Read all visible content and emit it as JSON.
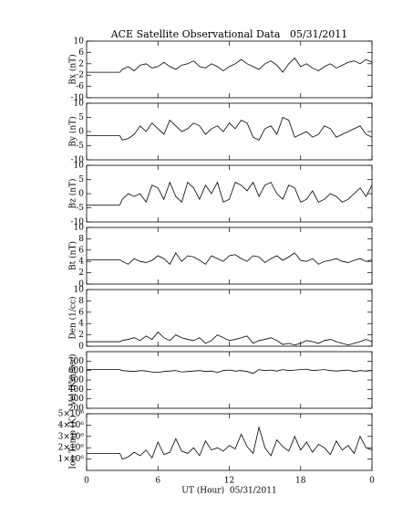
{
  "chart_data": [
    {
      "type": "line",
      "title": "ACE Satellite Observational Data   05/31/2011",
      "ylabel": "Bx (nT)",
      "xlim": [
        0,
        24
      ],
      "ylim": [
        -10,
        10
      ],
      "yticks": [
        -10,
        -6,
        -2,
        2,
        6,
        10
      ],
      "color": "#000000",
      "x": [
        0,
        2.8,
        3,
        3.5,
        4,
        4.5,
        5,
        5.5,
        6,
        6.5,
        7,
        7.5,
        8,
        8.5,
        9,
        9.5,
        10,
        10.5,
        11,
        11.5,
        12,
        12.5,
        13,
        13.5,
        14,
        14.5,
        15,
        15.5,
        16,
        16.5,
        17,
        17.5,
        18,
        18.5,
        19,
        19.5,
        20,
        20.5,
        21,
        21.5,
        22,
        22.5,
        23,
        23.5,
        24
      ],
      "values": [
        -1,
        -1,
        0,
        1,
        -0.5,
        1.5,
        2,
        0.5,
        1,
        2.5,
        1,
        0,
        1.5,
        2,
        3,
        1,
        0.5,
        2,
        1,
        -0.5,
        1,
        2,
        3.5,
        2,
        1,
        0,
        2,
        3,
        1.5,
        -1,
        2,
        4,
        1,
        2,
        0.5,
        -0.5,
        1,
        2,
        0.5,
        1.5,
        2.5,
        3,
        2,
        3.5,
        2.5
      ]
    },
    {
      "type": "line",
      "ylabel": "By (nT)",
      "xlim": [
        0,
        24
      ],
      "ylim": [
        -10,
        10
      ],
      "yticks": [
        -10,
        -5,
        0,
        5,
        10
      ],
      "color": "#000000",
      "x": [
        0,
        2.8,
        3,
        3.5,
        4,
        4.5,
        5,
        5.5,
        6,
        6.5,
        7,
        7.5,
        8,
        8.5,
        9,
        9.5,
        10,
        10.5,
        11,
        11.5,
        12,
        12.5,
        13,
        13.5,
        14,
        14.5,
        15,
        15.5,
        16,
        16.5,
        17,
        17.5,
        18,
        18.5,
        19,
        19.5,
        20,
        20.5,
        21,
        21.5,
        22,
        22.5,
        23,
        23.5,
        24
      ],
      "values": [
        -1.5,
        -1.5,
        -3,
        -2.5,
        -1,
        2,
        0,
        3,
        1,
        -1,
        4,
        2,
        0,
        1,
        3,
        2,
        -1,
        1,
        2,
        0,
        3,
        1,
        4,
        3,
        -2,
        -3,
        1,
        2,
        -1,
        5,
        4,
        -2,
        -1,
        0,
        -2,
        -1,
        2,
        1,
        -2,
        -1,
        0,
        1,
        2,
        -1,
        -2
      ]
    },
    {
      "type": "line",
      "ylabel": "Bz (nT)",
      "xlim": [
        0,
        24
      ],
      "ylim": [
        -10,
        10
      ],
      "yticks": [
        -10,
        -5,
        0,
        5,
        10
      ],
      "color": "#000000",
      "x": [
        0,
        2.8,
        3,
        3.5,
        4,
        4.5,
        5,
        5.5,
        6,
        6.5,
        7,
        7.5,
        8,
        8.5,
        9,
        9.5,
        10,
        10.5,
        11,
        11.5,
        12,
        12.5,
        13,
        13.5,
        14,
        14.5,
        15,
        15.5,
        16,
        16.5,
        17,
        17.5,
        18,
        18.5,
        19,
        19.5,
        20,
        20.5,
        21,
        21.5,
        22,
        22.5,
        23,
        23.5,
        24
      ],
      "values": [
        -4,
        -4,
        -2,
        0,
        -1,
        0,
        -3,
        3,
        2,
        -2,
        4,
        -1,
        -3,
        4,
        2,
        -2,
        3,
        0,
        4,
        -3,
        -2,
        4,
        3,
        1,
        4,
        -1,
        3,
        4,
        0,
        -2,
        3,
        2,
        -3,
        -2,
        1,
        -3,
        -2,
        0,
        -1,
        -3,
        -2,
        0,
        2,
        -1,
        3
      ]
    },
    {
      "type": "line",
      "ylabel": "Bt (nT)",
      "xlim": [
        0,
        24
      ],
      "ylim": [
        0,
        10
      ],
      "yticks": [
        0,
        2,
        4,
        6,
        8,
        10
      ],
      "color": "#000000",
      "x": [
        0,
        2.8,
        3,
        3.5,
        4,
        4.5,
        5,
        5.5,
        6,
        6.5,
        7,
        7.5,
        8,
        8.5,
        9,
        9.5,
        10,
        10.5,
        11,
        11.5,
        12,
        12.5,
        13,
        13.5,
        14,
        14.5,
        15,
        15.5,
        16,
        16.5,
        17,
        17.5,
        18,
        18.5,
        19,
        19.5,
        20,
        20.5,
        21,
        21.5,
        22,
        22.5,
        23,
        23.5,
        24
      ],
      "values": [
        4.3,
        4.3,
        4,
        3.5,
        4.5,
        4,
        3.8,
        4.2,
        5,
        4.5,
        3.5,
        5.5,
        4,
        5,
        4.8,
        4.2,
        3.5,
        5,
        4.5,
        4,
        5,
        5.2,
        4.5,
        4,
        5,
        4.8,
        3.8,
        4.5,
        5,
        4.2,
        4.8,
        5.5,
        4.2,
        4,
        4.5,
        3.5,
        4,
        4.2,
        4.5,
        4,
        3.8,
        4.2,
        4.5,
        4,
        4.3
      ]
    },
    {
      "type": "line",
      "ylabel": "Den (1/cc)",
      "xlim": [
        0,
        24
      ],
      "ylim": [
        0,
        10
      ],
      "yticks": [
        0,
        2,
        4,
        6,
        8,
        10
      ],
      "color": "#000000",
      "x": [
        0,
        2.8,
        3,
        3.5,
        4,
        4.5,
        5,
        5.5,
        6,
        6.5,
        7,
        7.5,
        8,
        8.5,
        9,
        9.5,
        10,
        10.5,
        11,
        11.5,
        12,
        12.5,
        13,
        13.5,
        14,
        14.5,
        15,
        15.5,
        16,
        16.5,
        17,
        17.5,
        18,
        18.5,
        19,
        19.5,
        20,
        20.5,
        21,
        21.5,
        22,
        22.5,
        23,
        23.5,
        24
      ],
      "values": [
        0.8,
        0.8,
        1,
        1.2,
        1.5,
        1,
        1.8,
        1.2,
        2.5,
        1.5,
        1,
        2,
        1.5,
        1.2,
        1,
        1.5,
        0.5,
        1,
        2,
        1.5,
        1,
        1.2,
        1.5,
        1.8,
        0.5,
        1,
        1.2,
        1.5,
        1,
        0.3,
        0.5,
        0.2,
        0.5,
        1,
        0.8,
        0.5,
        1,
        1.2,
        0.8,
        0.5,
        0.2,
        0.5,
        0.8,
        1.2,
        0.8
      ]
    },
    {
      "type": "line",
      "ylabel": "Vel (Km/sec)",
      "xlim": [
        0,
        24
      ],
      "ylim": [
        200,
        800
      ],
      "yticks": [
        200,
        300,
        400,
        500,
        600,
        700
      ],
      "color": "#000000",
      "x": [
        0,
        2.8,
        3,
        3.5,
        4,
        4.5,
        5,
        5.5,
        6,
        6.5,
        7,
        7.5,
        8,
        8.5,
        9,
        9.5,
        10,
        10.5,
        11,
        11.5,
        12,
        12.5,
        13,
        13.5,
        14,
        14.5,
        15,
        15.5,
        16,
        16.5,
        17,
        17.5,
        18,
        18.5,
        19,
        19.5,
        20,
        20.5,
        21,
        21.5,
        22,
        22.5,
        23,
        23.5,
        24
      ],
      "values": [
        610,
        610,
        600,
        595,
        590,
        600,
        595,
        585,
        580,
        590,
        595,
        600,
        585,
        590,
        595,
        600,
        590,
        595,
        580,
        600,
        605,
        595,
        600,
        590,
        570,
        610,
        600,
        605,
        595,
        610,
        600,
        605,
        610,
        615,
        600,
        605,
        610,
        600,
        595,
        600,
        605,
        590,
        600,
        595,
        600
      ]
    },
    {
      "type": "line",
      "ylabel": "Ion Temp (K)",
      "xlabel": "UT (Hour)  05/31/2011",
      "xlim": [
        0,
        24
      ],
      "ylim": [
        0,
        5000000
      ],
      "yticks": [
        {
          "value": 1000000,
          "label": "1×10⁶"
        },
        {
          "value": 2000000,
          "label": "2×10⁶"
        },
        {
          "value": 3000000,
          "label": "3×10⁶"
        },
        {
          "value": 4000000,
          "label": "4×10⁶"
        },
        {
          "value": 5000000,
          "label": "5×10⁶"
        }
      ],
      "xticks": [
        0,
        6,
        12,
        18,
        {
          "value": 24,
          "label": "0"
        }
      ],
      "color": "#000000",
      "x": [
        0,
        2.8,
        3,
        3.5,
        4,
        4.5,
        5,
        5.5,
        6,
        6.5,
        7,
        7.5,
        8,
        8.5,
        9,
        9.5,
        10,
        10.5,
        11,
        11.5,
        12,
        12.5,
        13,
        13.5,
        14,
        14.5,
        15,
        15.5,
        16,
        16.5,
        17,
        17.5,
        18,
        18.5,
        19,
        19.5,
        20,
        20.5,
        21,
        21.5,
        22,
        22.5,
        23,
        23.5,
        24
      ],
      "values": [
        1500000,
        1500000,
        1000000,
        1200000,
        1600000,
        1300000,
        1800000,
        1100000,
        2500000,
        1400000,
        1600000,
        2800000,
        1700000,
        1500000,
        2000000,
        1300000,
        2600000,
        1800000,
        2000000,
        1700000,
        2200000,
        1900000,
        3200000,
        2100000,
        1500000,
        3800000,
        2000000,
        1300000,
        2700000,
        2100000,
        1700000,
        3000000,
        1800000,
        2500000,
        1600000,
        2300000,
        2000000,
        1400000,
        2600000,
        1800000,
        2200000,
        1500000,
        3000000,
        2000000,
        1800000
      ]
    }
  ]
}
